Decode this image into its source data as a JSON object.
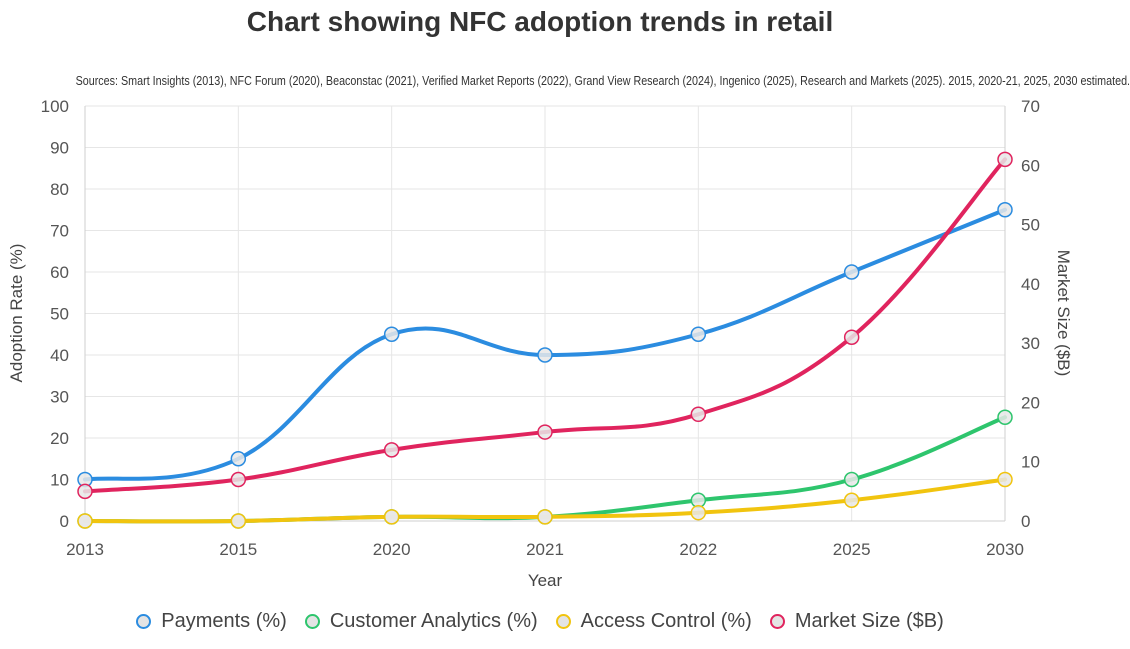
{
  "chart_data": {
    "type": "line",
    "title": "Chart showing NFC adoption trends in retail",
    "subtitle": "Sources: Smart Insights (2013), NFC Forum (2020), Beaconstac (2021), Verified Market Reports (2022), Grand View Research (2024), Ingenico (2025), Research and Markets (2025). 2015, 2020-21, 2025, 2030 estimated.",
    "xlabel": "Year",
    "ylabel": "Adoption Rate (%)",
    "y2label": "Market Size ($B)",
    "categories": [
      "2013",
      "2015",
      "2020",
      "2021",
      "2022",
      "2025",
      "2030"
    ],
    "ylim": [
      0,
      100
    ],
    "y_ticks": [
      0,
      10,
      20,
      30,
      40,
      50,
      60,
      70,
      80,
      90,
      100
    ],
    "y2lim": [
      0,
      70
    ],
    "y2_ticks": [
      0,
      10,
      20,
      30,
      40,
      50,
      60,
      70
    ],
    "grid": true,
    "legend_position": "bottom",
    "series": [
      {
        "name": "Payments (%)",
        "axis": "left",
        "color": "#2b8ce0",
        "values": [
          10,
          15,
          45,
          40,
          45,
          60,
          75
        ]
      },
      {
        "name": "Customer Analytics (%)",
        "axis": "left",
        "color": "#2ec56d",
        "values": [
          0,
          0,
          1,
          1,
          5,
          10,
          25
        ]
      },
      {
        "name": "Access Control (%)",
        "axis": "left",
        "color": "#f1c40f",
        "values": [
          0,
          0,
          1,
          1,
          2,
          5,
          10
        ]
      },
      {
        "name": "Market Size ($B)",
        "axis": "right",
        "color": "#e0245e",
        "values": [
          5,
          7,
          12,
          15,
          18,
          31,
          61
        ]
      }
    ]
  }
}
